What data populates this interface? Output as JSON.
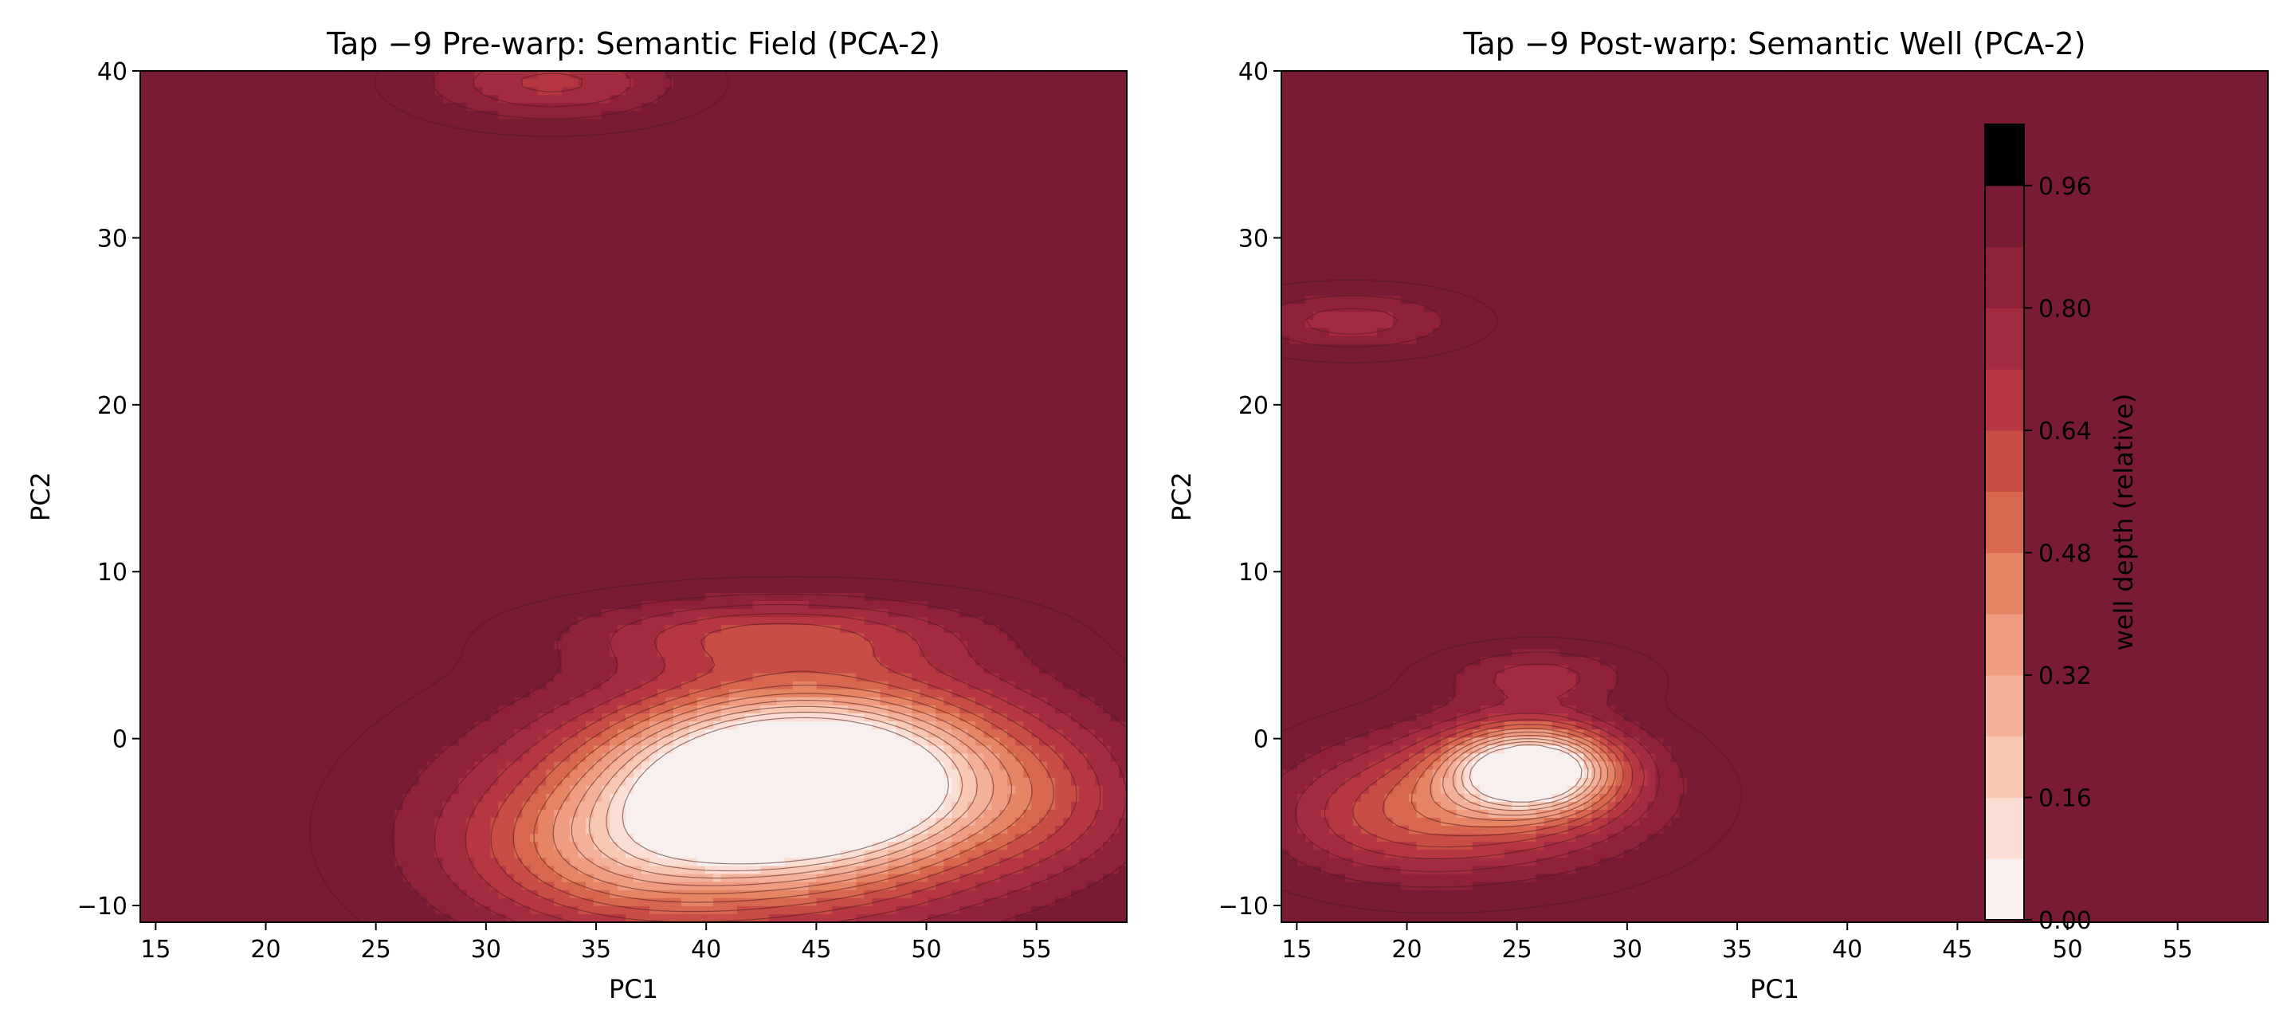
{
  "figure": {
    "colormap": [
      "#f7f0ef",
      "#faded4",
      "#f8c8b4",
      "#f4b19a",
      "#ef9c80",
      "#e68466",
      "#d8674f",
      "#c84d44",
      "#b63743",
      "#a42c40",
      "#8f2138",
      "#7a1b34"
    ],
    "contour_line_color": "#4a1a1a"
  },
  "chart_data": [
    {
      "type": "heatmap",
      "subtype": "filled-contour",
      "title": "Tap −9 Pre-warp: Semantic Field (PCA-2)",
      "xlabel": "PC1",
      "ylabel": "PC2",
      "xlim": [
        14.3,
        59.1
      ],
      "ylim": [
        -11,
        40
      ],
      "xticks": [
        15,
        20,
        25,
        30,
        35,
        40,
        45,
        50,
        55
      ],
      "yticks": [
        -10,
        0,
        10,
        20,
        30,
        40
      ],
      "xtick_labels": [
        "15",
        "20",
        "25",
        "30",
        "35",
        "40",
        "45",
        "50",
        "55"
      ],
      "ytick_labels": [
        "−10",
        "0",
        "10",
        "20",
        "30",
        "40"
      ],
      "value_name": "well depth (relative)",
      "background_level": 1.0,
      "components": [
        {
          "x": 44,
          "y": -2.5,
          "sx": 5.5,
          "sy": 3.4,
          "amp": 0.98
        },
        {
          "x": 41,
          "y": -5,
          "sx": 8.5,
          "sy": 5.2,
          "amp": 0.42
        },
        {
          "x": 48,
          "y": -2,
          "sx": 6.5,
          "sy": 4.5,
          "amp": 0.3
        },
        {
          "x": 36,
          "y": -7,
          "sx": 5,
          "sy": 3,
          "amp": 0.3
        },
        {
          "x": 43,
          "y": 6.3,
          "sx": 6,
          "sy": 1.5,
          "amp": 0.3
        },
        {
          "x": 33,
          "y": 39.3,
          "sx": 4,
          "sy": 1.6,
          "amp": 0.3
        },
        {
          "x": 56,
          "y": -4,
          "sx": 3,
          "sy": 3,
          "amp": 0.12
        }
      ]
    },
    {
      "type": "heatmap",
      "subtype": "filled-contour",
      "title": "Tap −9 Post-warp: Semantic Well (PCA-2)",
      "xlabel": "PC1",
      "ylabel": "PC2",
      "xlim": [
        14.3,
        59.1
      ],
      "ylim": [
        -11,
        40
      ],
      "xticks": [
        15,
        20,
        25,
        30,
        35,
        40,
        45,
        50,
        55
      ],
      "yticks": [
        -10,
        0,
        10,
        20,
        30,
        40
      ],
      "xtick_labels": [
        "15",
        "20",
        "25",
        "30",
        "35",
        "40",
        "45",
        "50",
        "55"
      ],
      "ytick_labels": [
        "−10",
        "0",
        "10",
        "20",
        "30",
        "40"
      ],
      "value_name": "well depth (relative)",
      "background_level": 1.0,
      "components": [
        {
          "x": 25.7,
          "y": -1.8,
          "sx": 2.5,
          "sy": 1.7,
          "amp": 0.98
        },
        {
          "x": 24,
          "y": -3.5,
          "sx": 5.2,
          "sy": 3,
          "amp": 0.4
        },
        {
          "x": 19,
          "y": -5,
          "sx": 4,
          "sy": 2.5,
          "amp": 0.2
        },
        {
          "x": 26,
          "y": 3.8,
          "sx": 3,
          "sy": 1.2,
          "amp": 0.22
        },
        {
          "x": 17.5,
          "y": 25,
          "sx": 3.5,
          "sy": 1.3,
          "amp": 0.24
        }
      ]
    }
  ],
  "colorbar": {
    "label": "well depth (relative)",
    "ticks": [
      0.0,
      0.16,
      0.32,
      0.48,
      0.64,
      0.8,
      0.96
    ],
    "tick_labels": [
      "0.00",
      "0.16",
      "0.32",
      "0.48",
      "0.64",
      "0.80",
      "0.96"
    ],
    "range": [
      0,
      1.04
    ],
    "levels": [
      0,
      0.08,
      0.16,
      0.24,
      0.32,
      0.4,
      0.48,
      0.56,
      0.64,
      0.72,
      0.8,
      0.88,
      0.96,
      1.04
    ]
  }
}
